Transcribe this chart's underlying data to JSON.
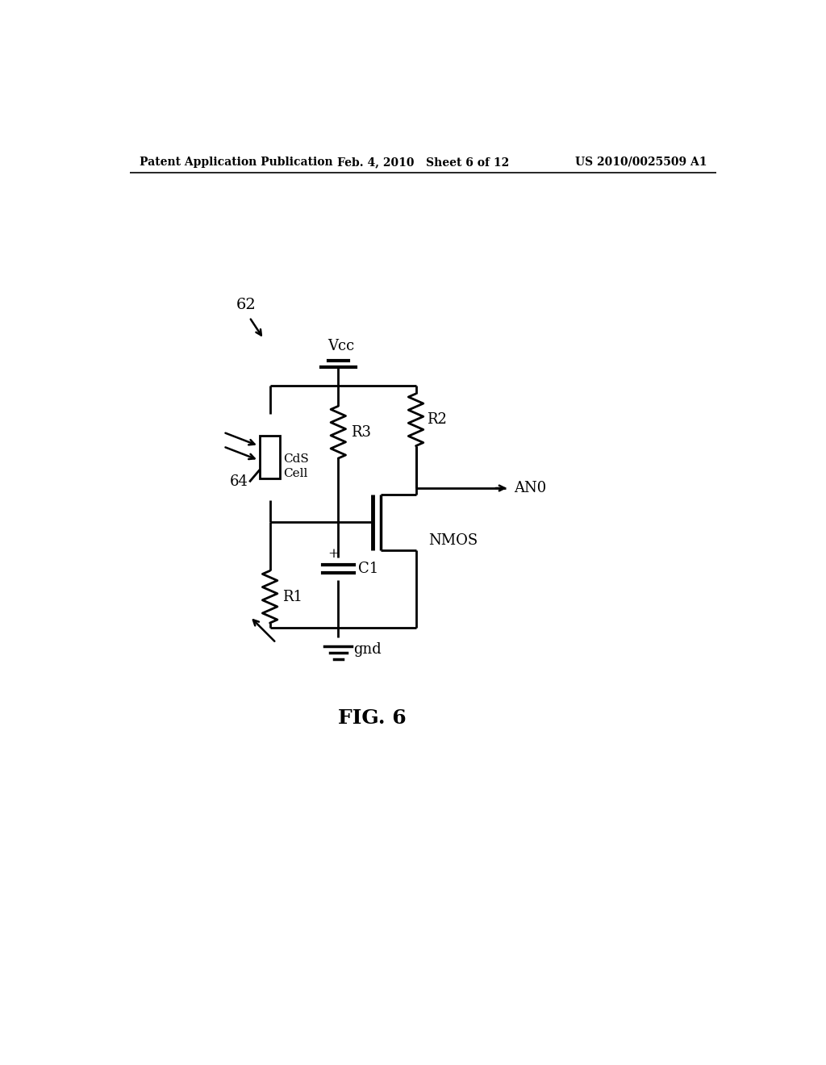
{
  "title_left": "Patent Application Publication",
  "title_center": "Feb. 4, 2010   Sheet 6 of 12",
  "title_right": "US 2010/0025509 A1",
  "fig_label": "FIG. 6",
  "label_62": "62",
  "label_64": "64",
  "label_Vcc": "Vcc",
  "label_R1": "R1",
  "label_R2": "R2",
  "label_R3": "R3",
  "label_C1": "C1",
  "label_NMOS": "NMOS",
  "label_CdS": "CdS\nCell",
  "label_gnd": "gnd",
  "label_ANO": "AN0",
  "bg_color": "#ffffff",
  "line_color": "#000000"
}
